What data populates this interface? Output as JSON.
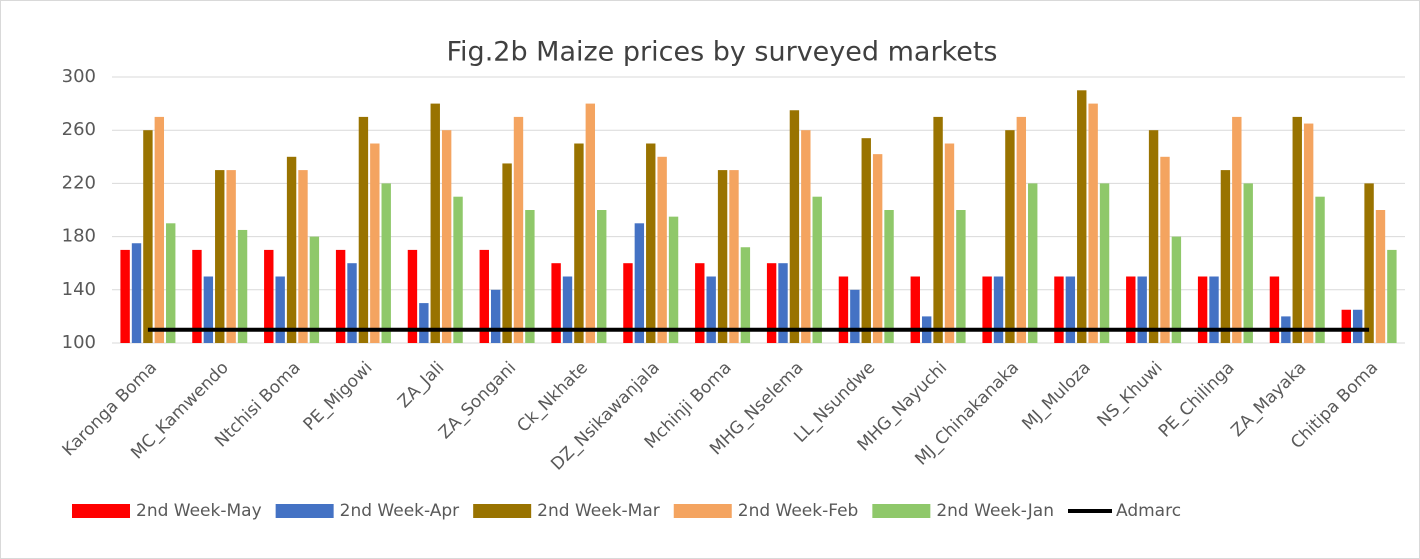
{
  "chart_data": {
    "type": "bar",
    "title": "Fig.2b Maize prices by surveyed markets",
    "categories": [
      "Karonga Boma",
      "MC_Kamwendo",
      "Ntchisi Boma",
      "PE_Migowi",
      "ZA_Jali",
      "ZA_Songani",
      "Ck_Nkhate",
      "DZ_Nsikawanjala",
      "Mchinji Boma",
      "MHG_Nselema",
      "LL_Nsundwe",
      "MHG_Nayuchi",
      "MJ_Chinakanaka",
      "MJ_Muloza",
      "NS_Khuwi",
      "PE_Chilinga",
      "ZA_Mayaka",
      "Chitipa Boma"
    ],
    "series": [
      {
        "name": "2nd Week-May",
        "color": "#ff0000",
        "values": [
          170,
          170,
          170,
          170,
          170,
          170,
          160,
          160,
          160,
          160,
          150,
          150,
          150,
          150,
          150,
          150,
          150,
          125
        ]
      },
      {
        "name": "2nd Week-Apr",
        "color": "#4472c4",
        "values": [
          175,
          150,
          150,
          160,
          130,
          140,
          150,
          190,
          150,
          160,
          140,
          120,
          150,
          150,
          150,
          150,
          120,
          125
        ]
      },
      {
        "name": "2nd Week-Mar",
        "color": "#997300",
        "values": [
          260,
          230,
          240,
          270,
          280,
          235,
          250,
          250,
          230,
          275,
          254,
          270,
          260,
          290,
          260,
          230,
          270,
          220
        ]
      },
      {
        "name": "2nd Week-Feb",
        "color": "#f4a460",
        "values": [
          270,
          230,
          230,
          250,
          260,
          270,
          280,
          240,
          230,
          260,
          242,
          250,
          270,
          280,
          240,
          270,
          265,
          200
        ]
      },
      {
        "name": "2nd Week-Jan",
        "color": "#8fc86a",
        "values": [
          190,
          185,
          180,
          220,
          210,
          200,
          200,
          195,
          172,
          210,
          200,
          200,
          220,
          220,
          180,
          220,
          210,
          170
        ]
      },
      {
        "name": "Admarc",
        "color": "#000000",
        "type": "line",
        "values": [
          110,
          110,
          110,
          110,
          110,
          110,
          110,
          110,
          110,
          110,
          110,
          110,
          110,
          110,
          110,
          110,
          110,
          110
        ]
      }
    ],
    "ylim": [
      100,
      300
    ],
    "yticks": [
      100,
      140,
      180,
      220,
      260,
      300
    ],
    "grid": true
  }
}
